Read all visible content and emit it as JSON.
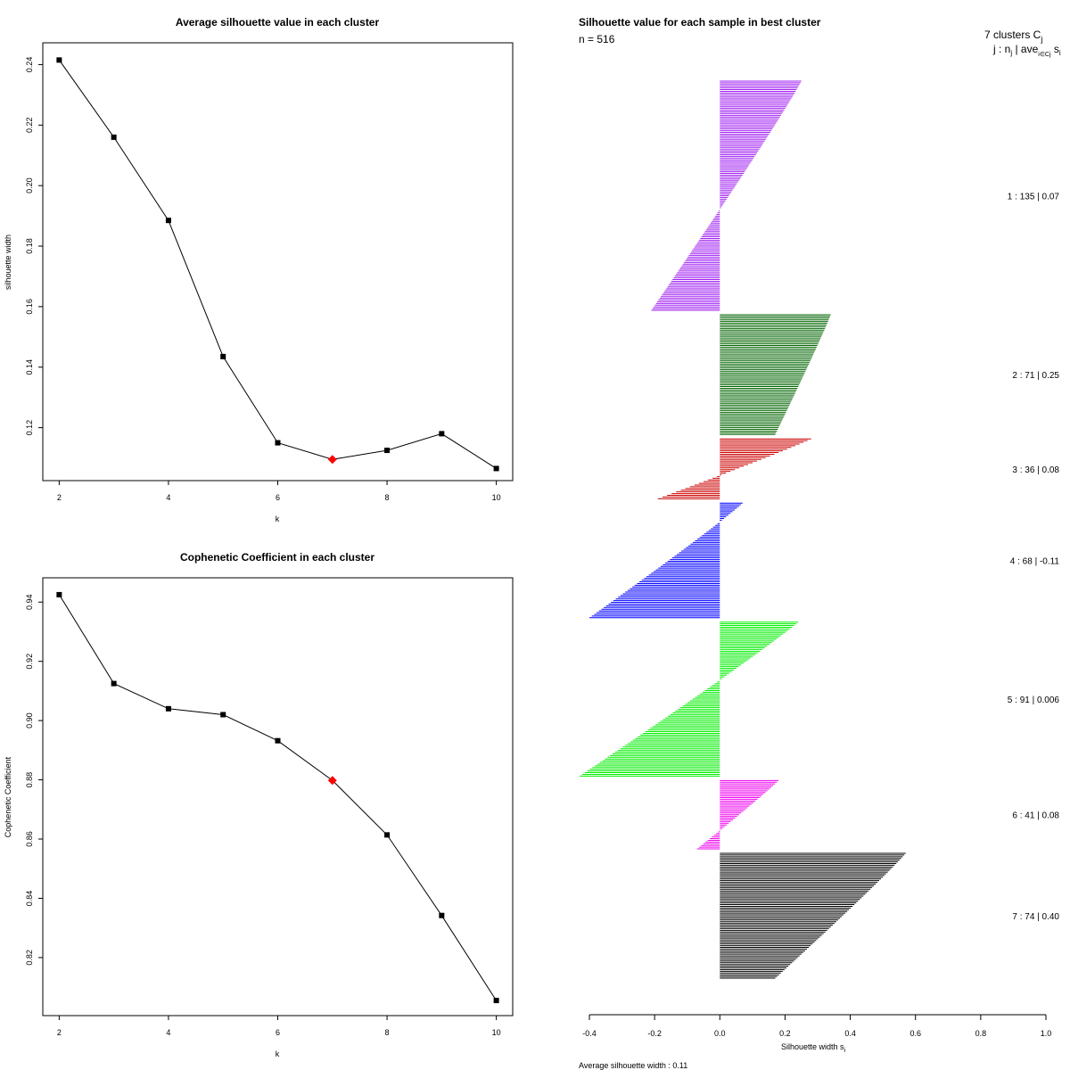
{
  "chart_data": [
    {
      "type": "line",
      "title": "Average silhouette value in each cluster",
      "xlabel": "k",
      "ylabel": "silhouette width",
      "x": [
        2,
        3,
        4,
        5,
        6,
        7,
        8,
        9,
        10
      ],
      "values": [
        0.2415,
        0.216,
        0.1885,
        0.1435,
        0.115,
        0.1095,
        0.1125,
        0.118,
        0.1065
      ],
      "highlight_index": 5,
      "highlight_color": "#ff0000",
      "xlim": [
        1.7,
        10.3
      ],
      "ylim": [
        0.1025,
        0.2472
      ],
      "x_ticks": [
        "2",
        "4",
        "6",
        "8",
        "10"
      ],
      "y_ticks": [
        "0.12",
        "0.14",
        "0.16",
        "0.18",
        "0.20",
        "0.22",
        "0.24"
      ]
    },
    {
      "type": "line",
      "title": "Cophenetic Coefficient in each cluster",
      "xlabel": "k",
      "ylabel": "Cophenetic Coefficient",
      "x": [
        2,
        3,
        4,
        5,
        6,
        7,
        8,
        9,
        10
      ],
      "values": [
        0.9425,
        0.9125,
        0.904,
        0.902,
        0.8932,
        0.8798,
        0.8614,
        0.8342,
        0.8055
      ],
      "highlight_index": 5,
      "highlight_color": "#ff0000",
      "xlim": [
        1.7,
        10.3
      ],
      "ylim": [
        0.8004,
        0.9482
      ],
      "x_ticks": [
        "2",
        "4",
        "6",
        "8",
        "10"
      ],
      "y_ticks": [
        "0.82",
        "0.84",
        "0.86",
        "0.88",
        "0.90",
        "0.92",
        "0.94"
      ]
    },
    {
      "type": "bar",
      "orientation": "horizontal",
      "title": "Silhouette value for each sample in best cluster",
      "n_label": "n = 516",
      "header_line1": "7 clusters  C",
      "header_sub1": "j",
      "header_line2": "j :  n",
      "header_sub2": "j",
      "header_line2b": " | ave",
      "header_sub3": "i∈Cj",
      "header_line2c": " s",
      "header_sub4": "i",
      "xlabel": "Silhouette width s",
      "xlabel_sub": "i",
      "footer": "Average silhouette width :  0.11",
      "xlim": [
        -0.4,
        1.0
      ],
      "x_ticks": [
        "-0.4",
        "-0.2",
        "0.0",
        "0.2",
        "0.4",
        "0.6",
        "0.8",
        "1.0"
      ],
      "clusters": [
        {
          "label": "1 :   135  |  0.07",
          "n": 135,
          "ave": 0.07,
          "max": 0.25,
          "min": -0.21,
          "color": "#a020f0"
        },
        {
          "label": "2 :   71  |  0.25",
          "n": 71,
          "ave": 0.25,
          "max": 0.34,
          "min": 0.17,
          "color": "#006400"
        },
        {
          "label": "3 :   36  |  0.08",
          "n": 36,
          "ave": 0.08,
          "max": 0.28,
          "min": -0.19,
          "color": "#cc0000"
        },
        {
          "label": "4 :   68  |  -0.11",
          "n": 68,
          "ave": -0.11,
          "max": 0.07,
          "min": -0.4,
          "color": "#0000ff"
        },
        {
          "label": "5 :   91  |  0.006",
          "n": 91,
          "ave": 0.006,
          "max": 0.24,
          "min": -0.43,
          "color": "#00ee00"
        },
        {
          "label": "6 :   41  |  0.08",
          "n": 41,
          "ave": 0.08,
          "max": 0.18,
          "min": -0.07,
          "color": "#ee00ee"
        },
        {
          "label": "7 :   74  |  0.40",
          "n": 74,
          "ave": 0.4,
          "max": 0.57,
          "min": 0.17,
          "color": "#000000"
        }
      ]
    }
  ]
}
